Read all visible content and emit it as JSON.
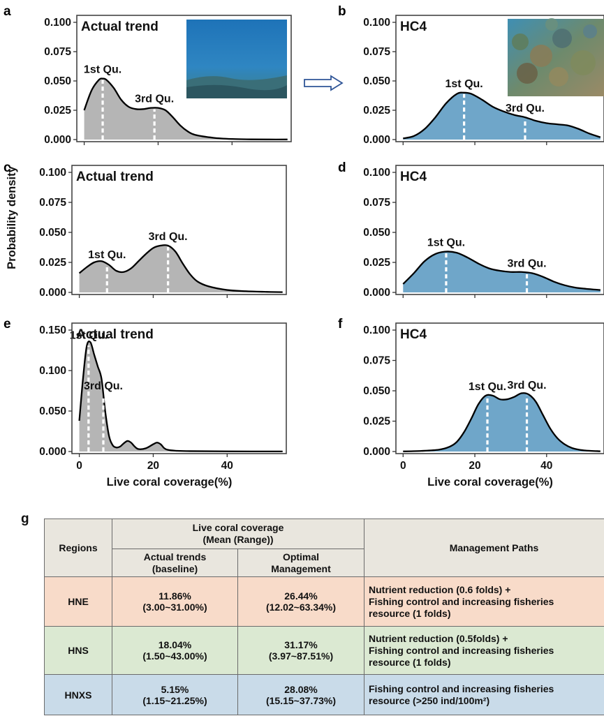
{
  "panels": [
    {
      "label": "a",
      "title": "Actual trend",
      "color": "#b5b5b5",
      "has_photo": true,
      "photo": "open-water-reef-photo",
      "show_xticks": false,
      "q1_label": "1st Qu.",
      "q3_label": "3rd Qu.",
      "q1": 5,
      "q3": 19,
      "yticks": [
        "0.000",
        "0.025",
        "0.050",
        "0.075",
        "0.100"
      ],
      "ymax": 0.1
    },
    {
      "label": "b",
      "title": "HC4",
      "color": "#6fa6c9",
      "has_photo": true,
      "photo": "coral-reef-photo",
      "show_xticks": false,
      "q1_label": "1st Qu.",
      "q3_label": "3rd Qu.",
      "q1": 17,
      "q3": 34,
      "yticks": [
        "0.000",
        "0.025",
        "0.050",
        "0.075",
        "0.100"
      ],
      "ymax": 0.1
    },
    {
      "label": "c",
      "title": "Actual trend",
      "color": "#b5b5b5",
      "has_photo": false,
      "show_xticks": false,
      "q1_label": "1st Qu.",
      "q3_label": "3rd Qu.",
      "q1": 7.5,
      "q3": 24,
      "yticks": [
        "0.000",
        "0.025",
        "0.050",
        "0.075",
        "0.100"
      ],
      "ymax": 0.1
    },
    {
      "label": "d",
      "title": "HC4",
      "color": "#6fa6c9",
      "has_photo": false,
      "show_xticks": false,
      "q1_label": "1st Qu.",
      "q3_label": "3rd Qu.",
      "q1": 12,
      "q3": 34.5,
      "yticks": [
        "0.000",
        "0.025",
        "0.050",
        "0.075",
        "0.100"
      ],
      "ymax": 0.1
    },
    {
      "label": "e",
      "title": "Actual trend",
      "color": "#b5b5b5",
      "has_photo": false,
      "show_xticks": true,
      "q1_label": "1st Qu.",
      "q3_label": "3rd Qu.",
      "q1": 2.5,
      "q3": 6.5,
      "yticks": [
        "0.000",
        "0.050",
        "0.100",
        "0.150"
      ],
      "ymax": 0.15
    },
    {
      "label": "f",
      "title": "HC4",
      "color": "#6fa6c9",
      "has_photo": false,
      "show_xticks": true,
      "q1_label": "1st Qu.",
      "q3_label": "3rd Qu.",
      "q1": 23.5,
      "q3": 34.5,
      "yticks": [
        "0.000",
        "0.025",
        "0.050",
        "0.075",
        "0.100"
      ],
      "ymax": 0.1
    }
  ],
  "axis": {
    "ylabel": "Probability density",
    "xlabel": "Live coral coverage(%)",
    "xticks": [
      "0",
      "20",
      "40"
    ],
    "xlim": [
      -2,
      56
    ]
  },
  "arrow_color": "#2f5597",
  "chart_data": [
    {
      "type": "area",
      "panel": "a",
      "title": "Actual trend",
      "ylabel": "Probability density",
      "xlim": [
        -2,
        56
      ],
      "ylim": [
        0,
        0.1
      ],
      "x": [
        0,
        2,
        4,
        5,
        6,
        8,
        10,
        12,
        14,
        16,
        18,
        20,
        22,
        24,
        26,
        28,
        30,
        35,
        40,
        45,
        50,
        55
      ],
      "y": [
        0.025,
        0.042,
        0.051,
        0.052,
        0.051,
        0.044,
        0.034,
        0.028,
        0.026,
        0.026,
        0.027,
        0.027,
        0.025,
        0.019,
        0.012,
        0.007,
        0.004,
        0.0015,
        0.0005,
        0.0002,
        0.0001,
        0.0001
      ],
      "annotations": [
        "1st Qu.",
        "3rd Qu."
      ]
    },
    {
      "type": "area",
      "panel": "b",
      "title": "HC4",
      "ylabel": "Probability density",
      "xlim": [
        -2,
        56
      ],
      "ylim": [
        0,
        0.1
      ],
      "x": [
        0,
        3,
        6,
        9,
        12,
        15,
        17,
        19,
        22,
        25,
        28,
        31,
        34,
        37,
        40,
        43,
        46,
        49,
        52,
        55
      ],
      "y": [
        0.001,
        0.003,
        0.009,
        0.019,
        0.031,
        0.039,
        0.04,
        0.039,
        0.034,
        0.028,
        0.024,
        0.021,
        0.019,
        0.016,
        0.014,
        0.013,
        0.012,
        0.009,
        0.005,
        0.002
      ],
      "annotations": [
        "1st Qu.",
        "3rd Qu."
      ]
    },
    {
      "type": "area",
      "panel": "c",
      "title": "Actual trend",
      "ylabel": "Probability density",
      "xlim": [
        -2,
        56
      ],
      "ylim": [
        0,
        0.1
      ],
      "x": [
        0,
        2,
        4,
        6,
        8,
        10,
        12,
        14,
        16,
        18,
        20,
        22,
        24,
        26,
        28,
        30,
        32,
        35,
        40,
        45,
        50,
        55
      ],
      "y": [
        0.016,
        0.021,
        0.025,
        0.026,
        0.023,
        0.018,
        0.017,
        0.02,
        0.026,
        0.032,
        0.037,
        0.039,
        0.039,
        0.034,
        0.024,
        0.015,
        0.009,
        0.005,
        0.002,
        0.001,
        0.0005,
        0.0002
      ],
      "annotations": [
        "1st Qu.",
        "3rd Qu."
      ]
    },
    {
      "type": "area",
      "panel": "d",
      "title": "HC4",
      "ylabel": "Probability density",
      "xlim": [
        -2,
        56
      ],
      "ylim": [
        0,
        0.1
      ],
      "x": [
        0,
        3,
        6,
        9,
        12,
        15,
        18,
        21,
        24,
        27,
        30,
        33,
        36,
        39,
        42,
        45,
        48,
        51,
        55
      ],
      "y": [
        0.007,
        0.016,
        0.026,
        0.032,
        0.034,
        0.033,
        0.029,
        0.024,
        0.02,
        0.018,
        0.017,
        0.017,
        0.016,
        0.013,
        0.009,
        0.006,
        0.004,
        0.003,
        0.002
      ],
      "annotations": [
        "1st Qu.",
        "3rd Qu."
      ]
    },
    {
      "type": "area",
      "panel": "e",
      "title": "Actual trend",
      "xlabel": "Live coral coverage(%)",
      "ylabel": "Probability density",
      "xlim": [
        -2,
        56
      ],
      "ylim": [
        0,
        0.15
      ],
      "x": [
        0,
        1,
        2,
        3,
        4,
        5,
        6,
        7,
        8,
        9,
        10,
        11,
        12,
        13,
        14,
        15,
        16,
        18,
        20,
        21,
        22,
        23,
        24,
        26,
        30,
        40,
        55
      ],
      "y": [
        0.038,
        0.09,
        0.13,
        0.135,
        0.12,
        0.105,
        0.09,
        0.05,
        0.02,
        0.008,
        0.005,
        0.006,
        0.01,
        0.013,
        0.011,
        0.006,
        0.003,
        0.004,
        0.009,
        0.011,
        0.009,
        0.004,
        0.002,
        0.001,
        0.0005,
        0.0002,
        0.0001
      ],
      "annotations": [
        "1st Qu.",
        "3rd Qu."
      ]
    },
    {
      "type": "area",
      "panel": "f",
      "title": "HC4",
      "xlabel": "Live coral coverage(%)",
      "ylabel": "Probability density",
      "xlim": [
        -2,
        56
      ],
      "ylim": [
        0,
        0.1
      ],
      "x": [
        0,
        5,
        10,
        13,
        15,
        17,
        19,
        21,
        23,
        25,
        27,
        29,
        31,
        33,
        35,
        37,
        39,
        41,
        43,
        45,
        47,
        49,
        51,
        55
      ],
      "y": [
        0.0001,
        0.0005,
        0.0015,
        0.004,
        0.008,
        0.016,
        0.027,
        0.039,
        0.046,
        0.046,
        0.043,
        0.043,
        0.045,
        0.048,
        0.047,
        0.041,
        0.03,
        0.019,
        0.011,
        0.006,
        0.003,
        0.0015,
        0.0008,
        0.0002
      ],
      "annotations": [
        "1st Qu.",
        "3rd Qu."
      ]
    }
  ],
  "table": {
    "label": "g",
    "header": {
      "regions": "Regions",
      "coverage": "Live coral coverage\n(Mean (Range))",
      "actual": "Actual trends\n(baseline)",
      "optimal": "Optimal\nManagement",
      "paths": "Management Paths"
    },
    "rows": [
      {
        "region": "HNE",
        "actual": "11.86%\n(3.00~31.00%)",
        "optimal": "26.44%\n(12.02~63.34%)",
        "path": "Nutrient reduction (0.6 folds) +\nFishing control and increasing fisheries\nresource (1 folds)"
      },
      {
        "region": "HNS",
        "actual": "18.04%\n(1.50~43.00%)",
        "optimal": "31.17%\n(3.97~87.51%)",
        "path": "Nutrient reduction (0.5folds) +\nFishing control and increasing fisheries\nresource (1 folds)"
      },
      {
        "region": "HNXS",
        "actual": "5.15%\n(1.15~21.25%)",
        "optimal": "28.08%\n(15.15~37.73%)",
        "path": "Fishing control and increasing fisheries\nresource (>250 ind/100m²)"
      }
    ],
    "row_colors": [
      "#f8dbc9",
      "#dbe9d2",
      "#c9dbe9"
    ]
  }
}
